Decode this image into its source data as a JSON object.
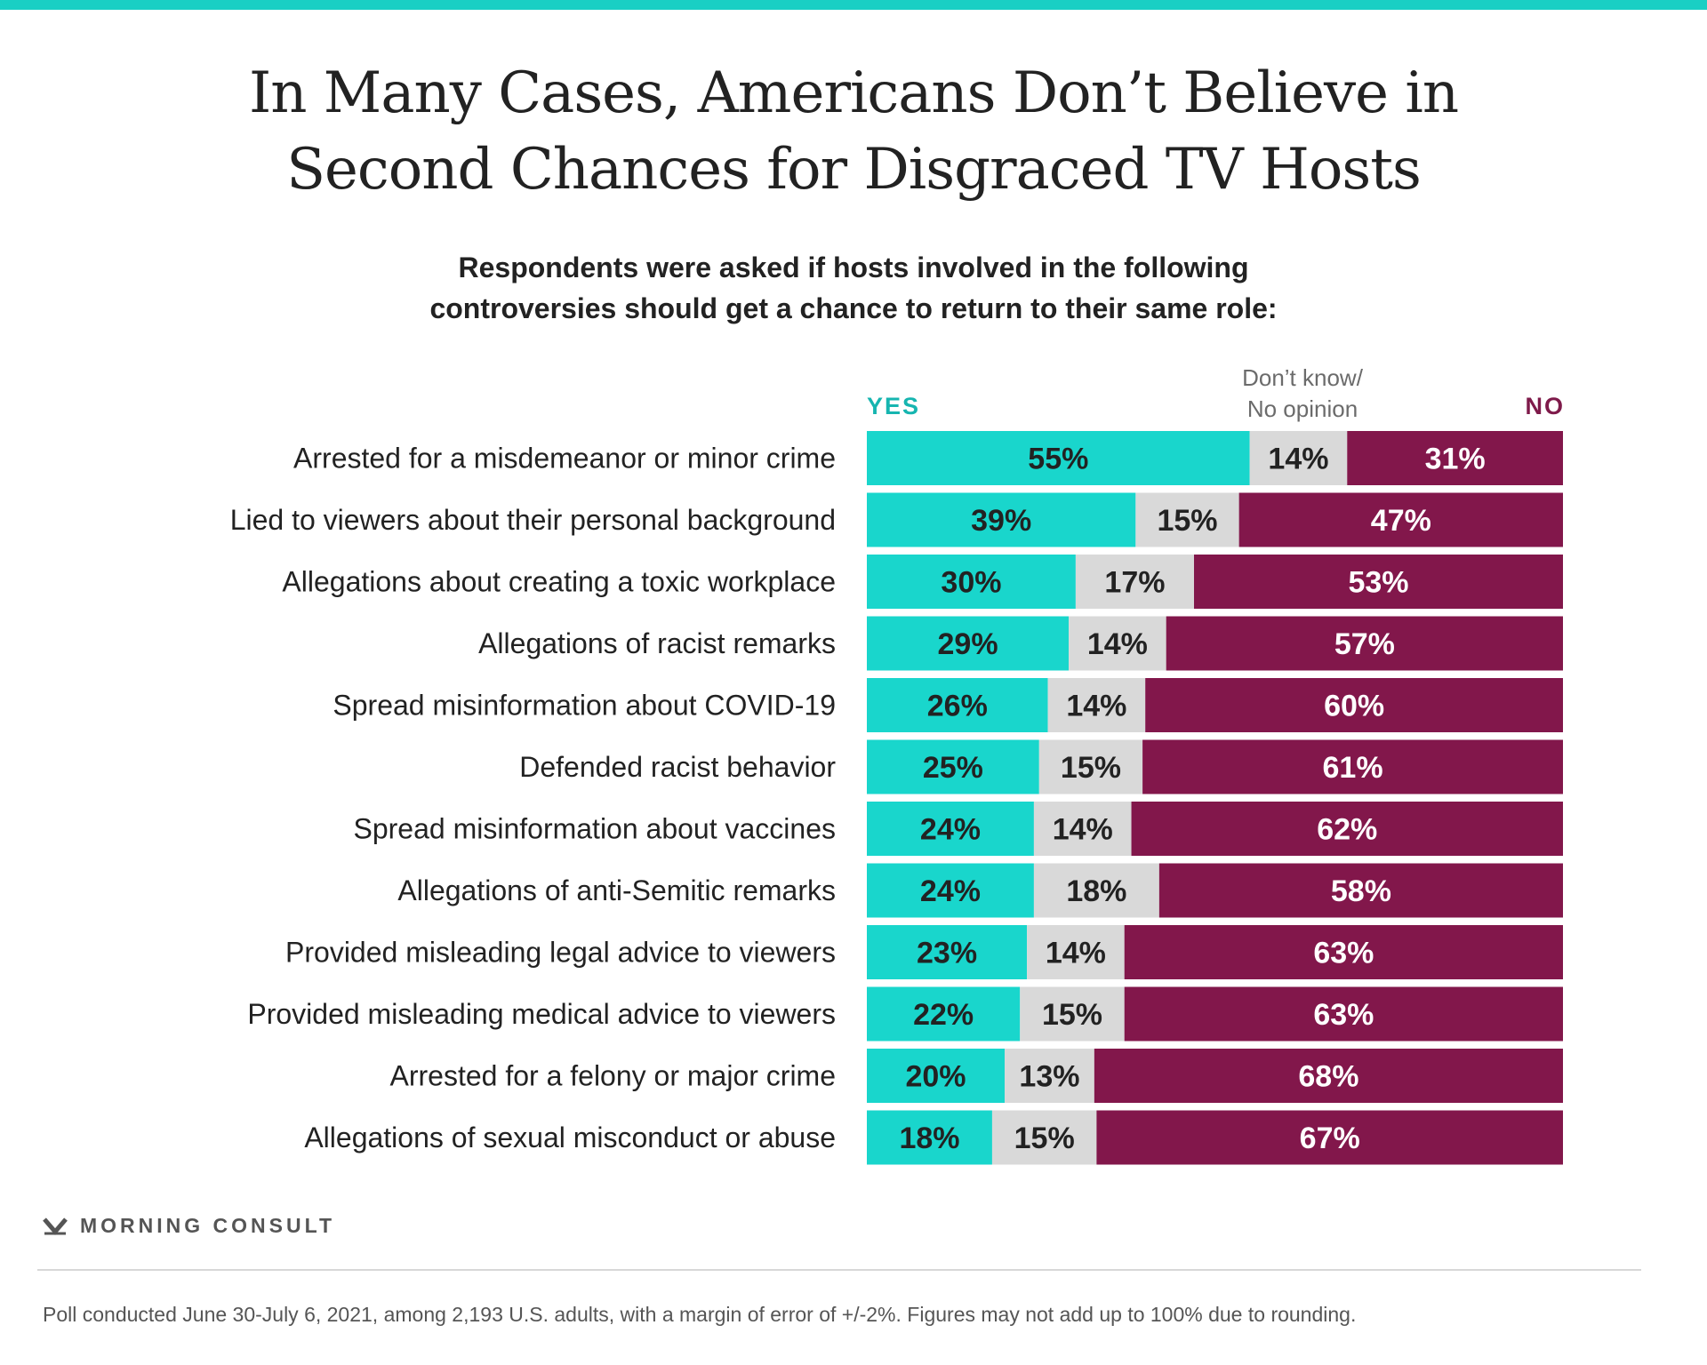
{
  "colors": {
    "yes": "#19d6cc",
    "dont_know": "#d9d9d9",
    "no": "#82174b",
    "accent_bar": "#19cfc4"
  },
  "title_lines": [
    "In Many Cases, Americans Don’t Believe in",
    "Second Chances for Disgraced TV Hosts"
  ],
  "subtitle_lines": [
    "Respondents were asked if hosts involved in the following",
    "controversies should get a chance to return to their same role:"
  ],
  "chart_data": {
    "type": "bar",
    "orientation": "horizontal",
    "stacked": true,
    "categories": [
      "Arrested for a misdemeanor or minor crime",
      "Lied to viewers about their personal background",
      "Allegations about creating a toxic workplace",
      "Allegations of racist remarks",
      "Spread misinformation about COVID-19",
      "Defended racist behavior",
      "Spread misinformation about vaccines",
      "Allegations of anti-Semitic remarks",
      "Provided misleading legal advice to viewers",
      "Provided misleading medical advice to viewers",
      "Arrested for a felony or major crime",
      "Allegations of sexual misconduct or abuse"
    ],
    "series": [
      {
        "name": "YES",
        "values": [
          55,
          39,
          30,
          29,
          26,
          25,
          24,
          24,
          23,
          22,
          20,
          18
        ]
      },
      {
        "name_lines": [
          "Don’t know/",
          "No opinion"
        ],
        "values": [
          14,
          15,
          17,
          14,
          14,
          15,
          14,
          18,
          14,
          15,
          13,
          15
        ]
      },
      {
        "name": "NO",
        "values": [
          31,
          47,
          53,
          57,
          60,
          61,
          62,
          58,
          63,
          63,
          68,
          67
        ]
      }
    ],
    "value_suffix": "%",
    "legend": "top"
  },
  "logo_text": "MORNING CONSULT",
  "footnote": "Poll conducted June 30-July 6, 2021, among 2,193 U.S. adults, with a margin of error of +/-2%. Figures may not add up to 100% due to rounding."
}
